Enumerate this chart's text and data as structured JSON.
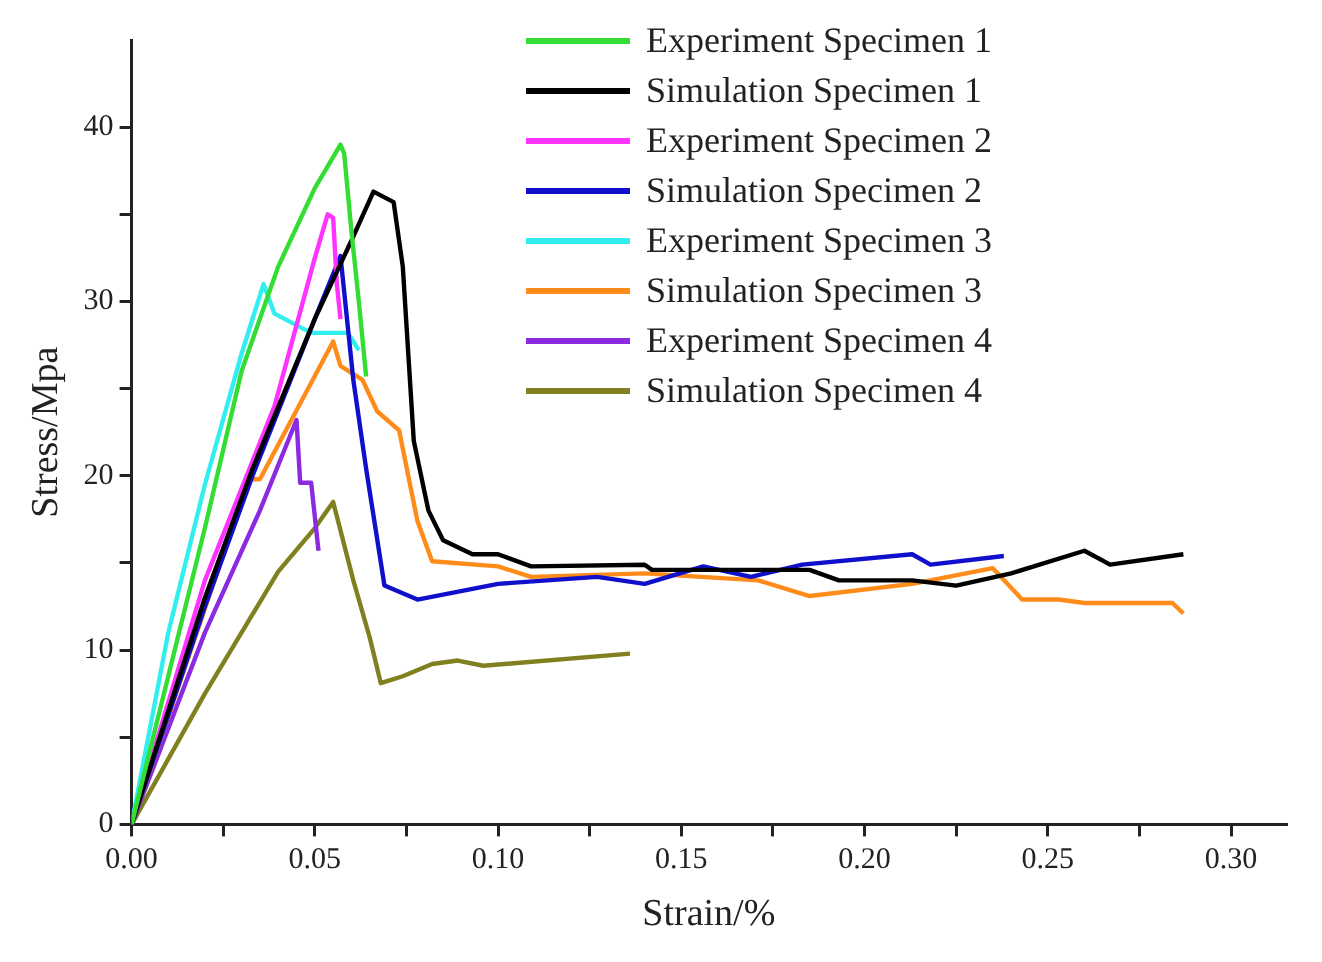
{
  "chart_data": {
    "type": "line",
    "xlabel": "Strain/%",
    "ylabel": "Stress/Mpa",
    "xlim": [
      0,
      0.315
    ],
    "ylim": [
      0,
      45
    ],
    "xticks": [
      {
        "value": 0,
        "label": "0.00"
      },
      {
        "value": 0.025,
        "label": null
      },
      {
        "value": 0.05,
        "label": "0.05"
      },
      {
        "value": 0.075,
        "label": null
      },
      {
        "value": 0.1,
        "label": "0.10"
      },
      {
        "value": 0.125,
        "label": null
      },
      {
        "value": 0.15,
        "label": "0.15"
      },
      {
        "value": 0.175,
        "label": null
      },
      {
        "value": 0.2,
        "label": "0.20"
      },
      {
        "value": 0.225,
        "label": null
      },
      {
        "value": 0.25,
        "label": "0.25"
      },
      {
        "value": 0.275,
        "label": null
      },
      {
        "value": 0.3,
        "label": "0.30"
      }
    ],
    "yticks": [
      0,
      {
        "value": 5,
        "label": null
      },
      10,
      {
        "value": 15,
        "label": null
      },
      20,
      {
        "value": 25,
        "label": null
      },
      30,
      {
        "value": 35,
        "label": null
      },
      40
    ],
    "grid": false,
    "legend": "top right",
    "marker": "none",
    "line_style": "solid",
    "series": [
      {
        "name": "Experiment Specimen 1",
        "color": "#33dd33",
        "x": [
          0,
          0.02,
          0.03,
          0.04,
          0.05,
          0.057,
          0.058,
          0.06,
          0.062,
          0.064
        ],
        "values": [
          0,
          17,
          26,
          32,
          36.5,
          39,
          38.5,
          34,
          30,
          25.7
        ]
      },
      {
        "name": "Simulation Specimen 1",
        "color": "#000000",
        "x": [
          0,
          0.02,
          0.033,
          0.05,
          0.06,
          0.066,
          0.0715,
          0.074,
          0.077,
          0.081,
          0.085,
          0.093,
          0.1,
          0.109,
          0.14,
          0.142,
          0.185,
          0.193,
          0.213,
          0.225,
          0.24,
          0.26,
          0.267,
          0.287
        ],
        "values": [
          0,
          13,
          20.4,
          29,
          33.5,
          36.3,
          35.7,
          32,
          22,
          18,
          16.3,
          15.5,
          15.5,
          14.8,
          14.9,
          14.6,
          14.6,
          14,
          14,
          13.7,
          14.4,
          15.7,
          14.9,
          15.5
        ]
      },
      {
        "name": "Experiment Specimen 2",
        "color": "#ff33ff",
        "x": [
          0,
          0.02,
          0.039,
          0.05,
          0.0535,
          0.055,
          0.056,
          0.057
        ],
        "values": [
          0,
          14,
          24,
          32.5,
          35,
          34.8,
          31,
          29
        ]
      },
      {
        "name": "Simulation Specimen 2",
        "color": "#1010cc",
        "x": [
          0,
          0.02,
          0.033,
          0.05,
          0.057,
          0.0605,
          0.064,
          0.069,
          0.078,
          0.1,
          0.127,
          0.14,
          0.156,
          0.169,
          0.183,
          0.213,
          0.218,
          0.238
        ],
        "values": [
          0,
          12.5,
          20,
          29,
          32.6,
          25.5,
          20.4,
          13.7,
          12.9,
          13.8,
          14.2,
          13.8,
          14.8,
          14.2,
          14.9,
          15.5,
          14.9,
          15.4
        ]
      },
      {
        "name": "Experiment Specimen 3",
        "color": "#33eeee",
        "x": [
          0,
          0.01,
          0.02,
          0.03,
          0.036,
          0.039,
          0.049,
          0.059,
          0.062
        ],
        "values": [
          0,
          11,
          19.5,
          27,
          31,
          29.3,
          28.2,
          28.2,
          27.2
        ]
      },
      {
        "name": "Simulation Specimen 3",
        "color": "#ff8c1a",
        "x": [
          0,
          0.032,
          0.035,
          0.055,
          0.057,
          0.063,
          0.067,
          0.073,
          0.078,
          0.082,
          0.1,
          0.109,
          0.14,
          0.171,
          0.185,
          0.213,
          0.235,
          0.243,
          0.253,
          0.26,
          0.284,
          0.287
        ],
        "values": [
          0,
          19.8,
          19.8,
          27.7,
          26.3,
          25.5,
          23.7,
          22.6,
          17.4,
          15.1,
          14.8,
          14.2,
          14.4,
          14,
          13.1,
          13.8,
          14.7,
          12.9,
          12.9,
          12.7,
          12.7,
          12.1
        ]
      },
      {
        "name": "Experiment Specimen 4",
        "color": "#8a2be2",
        "x": [
          0,
          0.02,
          0.035,
          0.045,
          0.046,
          0.049,
          0.051
        ],
        "values": [
          0,
          11,
          18,
          23.2,
          19.6,
          19.6,
          15.7
        ]
      },
      {
        "name": "Simulation Specimen 4",
        "color": "#808020",
        "x": [
          0,
          0.02,
          0.04,
          0.05,
          0.055,
          0.0605,
          0.065,
          0.068,
          0.074,
          0.082,
          0.089,
          0.096,
          0.136
        ],
        "values": [
          0,
          7.5,
          14.5,
          17,
          18.5,
          14,
          10.7,
          8.1,
          8.5,
          9.2,
          9.4,
          9.1,
          9.8
        ]
      }
    ]
  }
}
